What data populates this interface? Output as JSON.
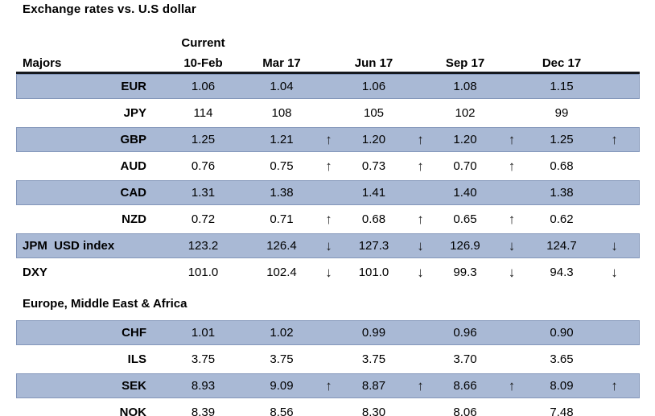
{
  "title": "Exchange rates vs. U.S dollar",
  "header": {
    "group_label": "Current",
    "row_label": "Majors",
    "columns": [
      "10-Feb",
      "Mar 17",
      "Jun 17",
      "Sep 17",
      "Dec 17"
    ]
  },
  "icons": {
    "up": "↑",
    "down": "↓"
  },
  "colors": {
    "row_shade": "#a9b9d5",
    "row_shade_border": "#8396ba",
    "header_rule": "#15181d",
    "text": "#000000"
  },
  "sections": [
    {
      "label": "",
      "rows": [
        {
          "label": "EUR",
          "label_align": "right",
          "shaded": true,
          "values": [
            "1.06",
            "1.04",
            "1.06",
            "1.08",
            "1.15"
          ],
          "arrows": [
            "",
            "",
            "",
            ""
          ]
        },
        {
          "label": "JPY",
          "label_align": "right",
          "shaded": false,
          "values": [
            "114",
            "108",
            "105",
            "102",
            "99"
          ],
          "arrows": [
            "",
            "",
            "",
            ""
          ]
        },
        {
          "label": "GBP",
          "label_align": "right",
          "shaded": true,
          "values": [
            "1.25",
            "1.21",
            "1.20",
            "1.20",
            "1.25"
          ],
          "arrows": [
            "up",
            "up",
            "up",
            "up"
          ]
        },
        {
          "label": "AUD",
          "label_align": "right",
          "shaded": false,
          "values": [
            "0.76",
            "0.75",
            "0.73",
            "0.70",
            "0.68"
          ],
          "arrows": [
            "up",
            "up",
            "up",
            ""
          ]
        },
        {
          "label": "CAD",
          "label_align": "right",
          "shaded": true,
          "values": [
            "1.31",
            "1.38",
            "1.41",
            "1.40",
            "1.38"
          ],
          "arrows": [
            "",
            "",
            "",
            ""
          ]
        },
        {
          "label": "NZD",
          "label_align": "right",
          "shaded": false,
          "values": [
            "0.72",
            "0.71",
            "0.68",
            "0.65",
            "0.62"
          ],
          "arrows": [
            "up",
            "up",
            "up",
            ""
          ]
        },
        {
          "label": "JPM  USD index",
          "label_align": "left",
          "shaded": true,
          "values": [
            "123.2",
            "126.4",
            "127.3",
            "126.9",
            "124.7"
          ],
          "arrows": [
            "down",
            "down",
            "down",
            "down"
          ]
        },
        {
          "label": "DXY",
          "label_align": "left",
          "shaded": false,
          "values": [
            "101.0",
            "102.4",
            "101.0",
            "99.3",
            "94.3"
          ],
          "arrows": [
            "down",
            "down",
            "down",
            "down"
          ]
        }
      ]
    },
    {
      "label": "Europe, Middle East & Africa",
      "rows": [
        {
          "label": "CHF",
          "label_align": "right",
          "shaded": true,
          "values": [
            "1.01",
            "1.02",
            "0.99",
            "0.96",
            "0.90"
          ],
          "arrows": [
            "",
            "",
            "",
            ""
          ]
        },
        {
          "label": "ILS",
          "label_align": "right",
          "shaded": false,
          "values": [
            "3.75",
            "3.75",
            "3.75",
            "3.70",
            "3.65"
          ],
          "arrows": [
            "",
            "",
            "",
            ""
          ]
        },
        {
          "label": "SEK",
          "label_align": "right",
          "shaded": true,
          "values": [
            "8.93",
            "9.09",
            "8.87",
            "8.66",
            "8.09"
          ],
          "arrows": [
            "up",
            "up",
            "up",
            "up"
          ]
        },
        {
          "label": "NOK",
          "label_align": "right",
          "shaded": false,
          "values": [
            "8.39",
            "8.56",
            "8.30",
            "8.06",
            "7.48"
          ],
          "arrows": [
            "",
            "",
            "",
            ""
          ]
        }
      ]
    }
  ]
}
